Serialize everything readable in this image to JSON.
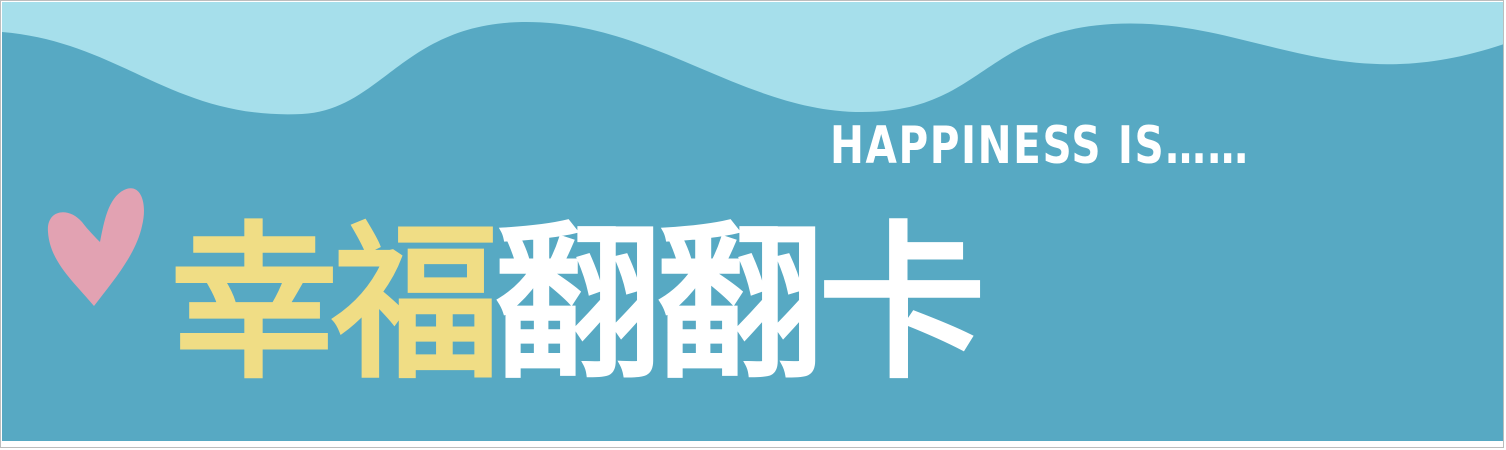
{
  "banner": {
    "tagline": "HAPPINESS IS……",
    "title_part1": "幸福",
    "title_part2": "翻翻卡",
    "colors": {
      "wave_light": "#a6dfeb",
      "main_blue": "#57a9c3",
      "title_yellow": "#f0dd85",
      "title_white": "#ffffff",
      "heart_pink": "#e2a2b2"
    },
    "icons": [
      "heart-icon"
    ]
  }
}
